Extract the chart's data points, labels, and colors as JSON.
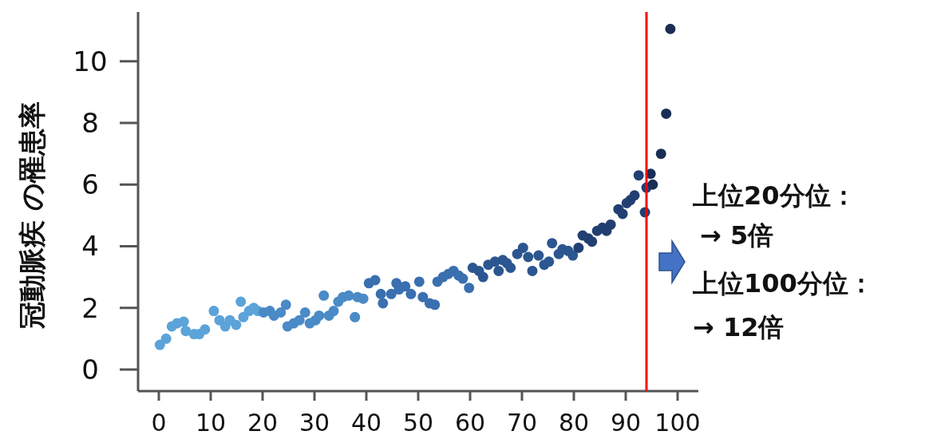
{
  "chart_data": {
    "type": "scatter",
    "ylabel": "冠動脈疾 の罹患率",
    "x": [
      0.2,
      1.4,
      2.5,
      3.5,
      4.8,
      5.2,
      6.8,
      7.8,
      8.9,
      10.6,
      11.7,
      12.8,
      13.7,
      14.9,
      15.8,
      16.3,
      17.4,
      18.3,
      19.1,
      20.2,
      21.4,
      22.2,
      23.5,
      24.5,
      24.8,
      26,
      27.1,
      28.2,
      29.1,
      30.2,
      30.9,
      31.8,
      32.8,
      33.7,
      34.6,
      35.5,
      36.6,
      37.8,
      38.3,
      39.4,
      40.5,
      41.7,
      42.8,
      43.2,
      44.8,
      45.8,
      46.3,
      47.5,
      48.6,
      50.2,
      50.9,
      52.2,
      53.2,
      53.7,
      54.8,
      55.8,
      56.8,
      57.8,
      58.6,
      59.8,
      60.5,
      61.7,
      62.5,
      63.5,
      64.8,
      65.5,
      66.3,
      67.1,
      67.8,
      69.1,
      70.2,
      71.2,
      72,
      73.2,
      74.3,
      75.2,
      75.8,
      77.1,
      77.8,
      78.9,
      79.8,
      80.9,
      81.7,
      82.8,
      83.5,
      84.5,
      85.5,
      86.3,
      87.1,
      88.6,
      89.4,
      90.2,
      90.9,
      91.7,
      92.5,
      93.7,
      94,
      94.8,
      95.2,
      96.8,
      97.8,
      98.6
    ],
    "values": [
      0.8,
      1.0,
      1.4,
      1.5,
      1.55,
      1.25,
      1.15,
      1.15,
      1.3,
      1.9,
      1.6,
      1.4,
      1.6,
      1.45,
      2.2,
      1.7,
      1.9,
      2.0,
      1.9,
      1.85,
      1.9,
      1.75,
      1.85,
      2.1,
      1.4,
      1.5,
      1.6,
      1.85,
      1.5,
      1.6,
      1.75,
      2.4,
      1.75,
      1.9,
      2.2,
      2.35,
      2.4,
      1.7,
      2.35,
      2.3,
      2.8,
      2.9,
      2.45,
      2.15,
      2.45,
      2.8,
      2.6,
      2.7,
      2.45,
      2.85,
      2.35,
      2.15,
      2.1,
      2.85,
      3.0,
      3.1,
      3.2,
      3.05,
      2.95,
      2.65,
      3.3,
      3.2,
      3.0,
      3.4,
      3.5,
      3.2,
      3.55,
      3.45,
      3.3,
      3.75,
      3.95,
      3.65,
      3.2,
      3.7,
      3.4,
      3.5,
      4.1,
      3.75,
      3.9,
      3.85,
      3.7,
      3.95,
      4.35,
      4.25,
      4.15,
      4.5,
      4.6,
      4.5,
      4.7,
      5.2,
      5.05,
      5.4,
      5.5,
      5.65,
      6.3,
      5.1,
      5.9,
      6.35,
      6.0,
      7.0,
      8.3,
      11.05
    ],
    "colors": [
      "#5ba3d9",
      "#5ba3d9",
      "#5ba3d9",
      "#5ba3d9",
      "#5ba3d9",
      "#5ba3d9",
      "#5ba3d9",
      "#5ba3d9",
      "#5ba3d9",
      "#5ba3d9",
      "#5ba3d9",
      "#5ba3d9",
      "#5ba3d9",
      "#5ba3d9",
      "#5ba3d9",
      "#5ba3d9",
      "#5ba3d9",
      "#5ba3d9",
      "#5ba3d9",
      "#4a8ac6",
      "#4a8ac6",
      "#4a8ac6",
      "#4a8ac6",
      "#4a8ac6",
      "#4a8ac6",
      "#4a8ac6",
      "#4a8ac6",
      "#4a8ac6",
      "#4a8ac6",
      "#4a8ac6",
      "#4a8ac6",
      "#4a8ac6",
      "#4a8ac6",
      "#4a8ac6",
      "#4a8ac6",
      "#4a8ac6",
      "#4a8ac6",
      "#4a8ac6",
      "#4a8ac6",
      "#4a8ac6",
      "#3a6fb0",
      "#3a6fb0",
      "#3a6fb0",
      "#3a6fb0",
      "#3a6fb0",
      "#3a6fb0",
      "#3a6fb0",
      "#3a6fb0",
      "#3a6fb0",
      "#3a6fb0",
      "#3a6fb0",
      "#3a6fb0",
      "#3a6fb0",
      "#3a6fb0",
      "#3a6fb0",
      "#3a6fb0",
      "#3a6fb0",
      "#3a6fb0",
      "#3a6fb0",
      "#3a6fb0",
      "#2c5690",
      "#2c5690",
      "#2c5690",
      "#2c5690",
      "#2c5690",
      "#2c5690",
      "#2c5690",
      "#2c5690",
      "#2c5690",
      "#2c5690",
      "#2c5690",
      "#2c5690",
      "#2c5690",
      "#2c5690",
      "#2c5690",
      "#2c5690",
      "#2c5690",
      "#2c5690",
      "#2c5690",
      "#2c5690",
      "#2c5690",
      "#223f72",
      "#223f72",
      "#223f72",
      "#223f72",
      "#223f72",
      "#223f72",
      "#223f72",
      "#223f72",
      "#223f72",
      "#223f72",
      "#223f72",
      "#223f72",
      "#223f72",
      "#223f72",
      "#223f72",
      "#223f72",
      "#1a2e55",
      "#1a2e55",
      "#1a2e55",
      "#1a2e55",
      "#1a2e55"
    ],
    "marker": "circle",
    "xlim": [
      -4,
      104
    ],
    "xticks": [
      0,
      10,
      20,
      30,
      40,
      50,
      60,
      70,
      80,
      90,
      100
    ],
    "ylim": [
      -0.7,
      11.6
    ],
    "yticks": [
      0,
      2,
      4,
      6,
      8,
      10
    ],
    "grid": false,
    "ref_lines": [
      {
        "axis": "x",
        "value": 94,
        "color": "#ff0000"
      }
    ],
    "annotations": [
      "上位20分位：",
      "→ 5倍",
      "上位100分位：",
      "→ 12倍"
    ]
  }
}
